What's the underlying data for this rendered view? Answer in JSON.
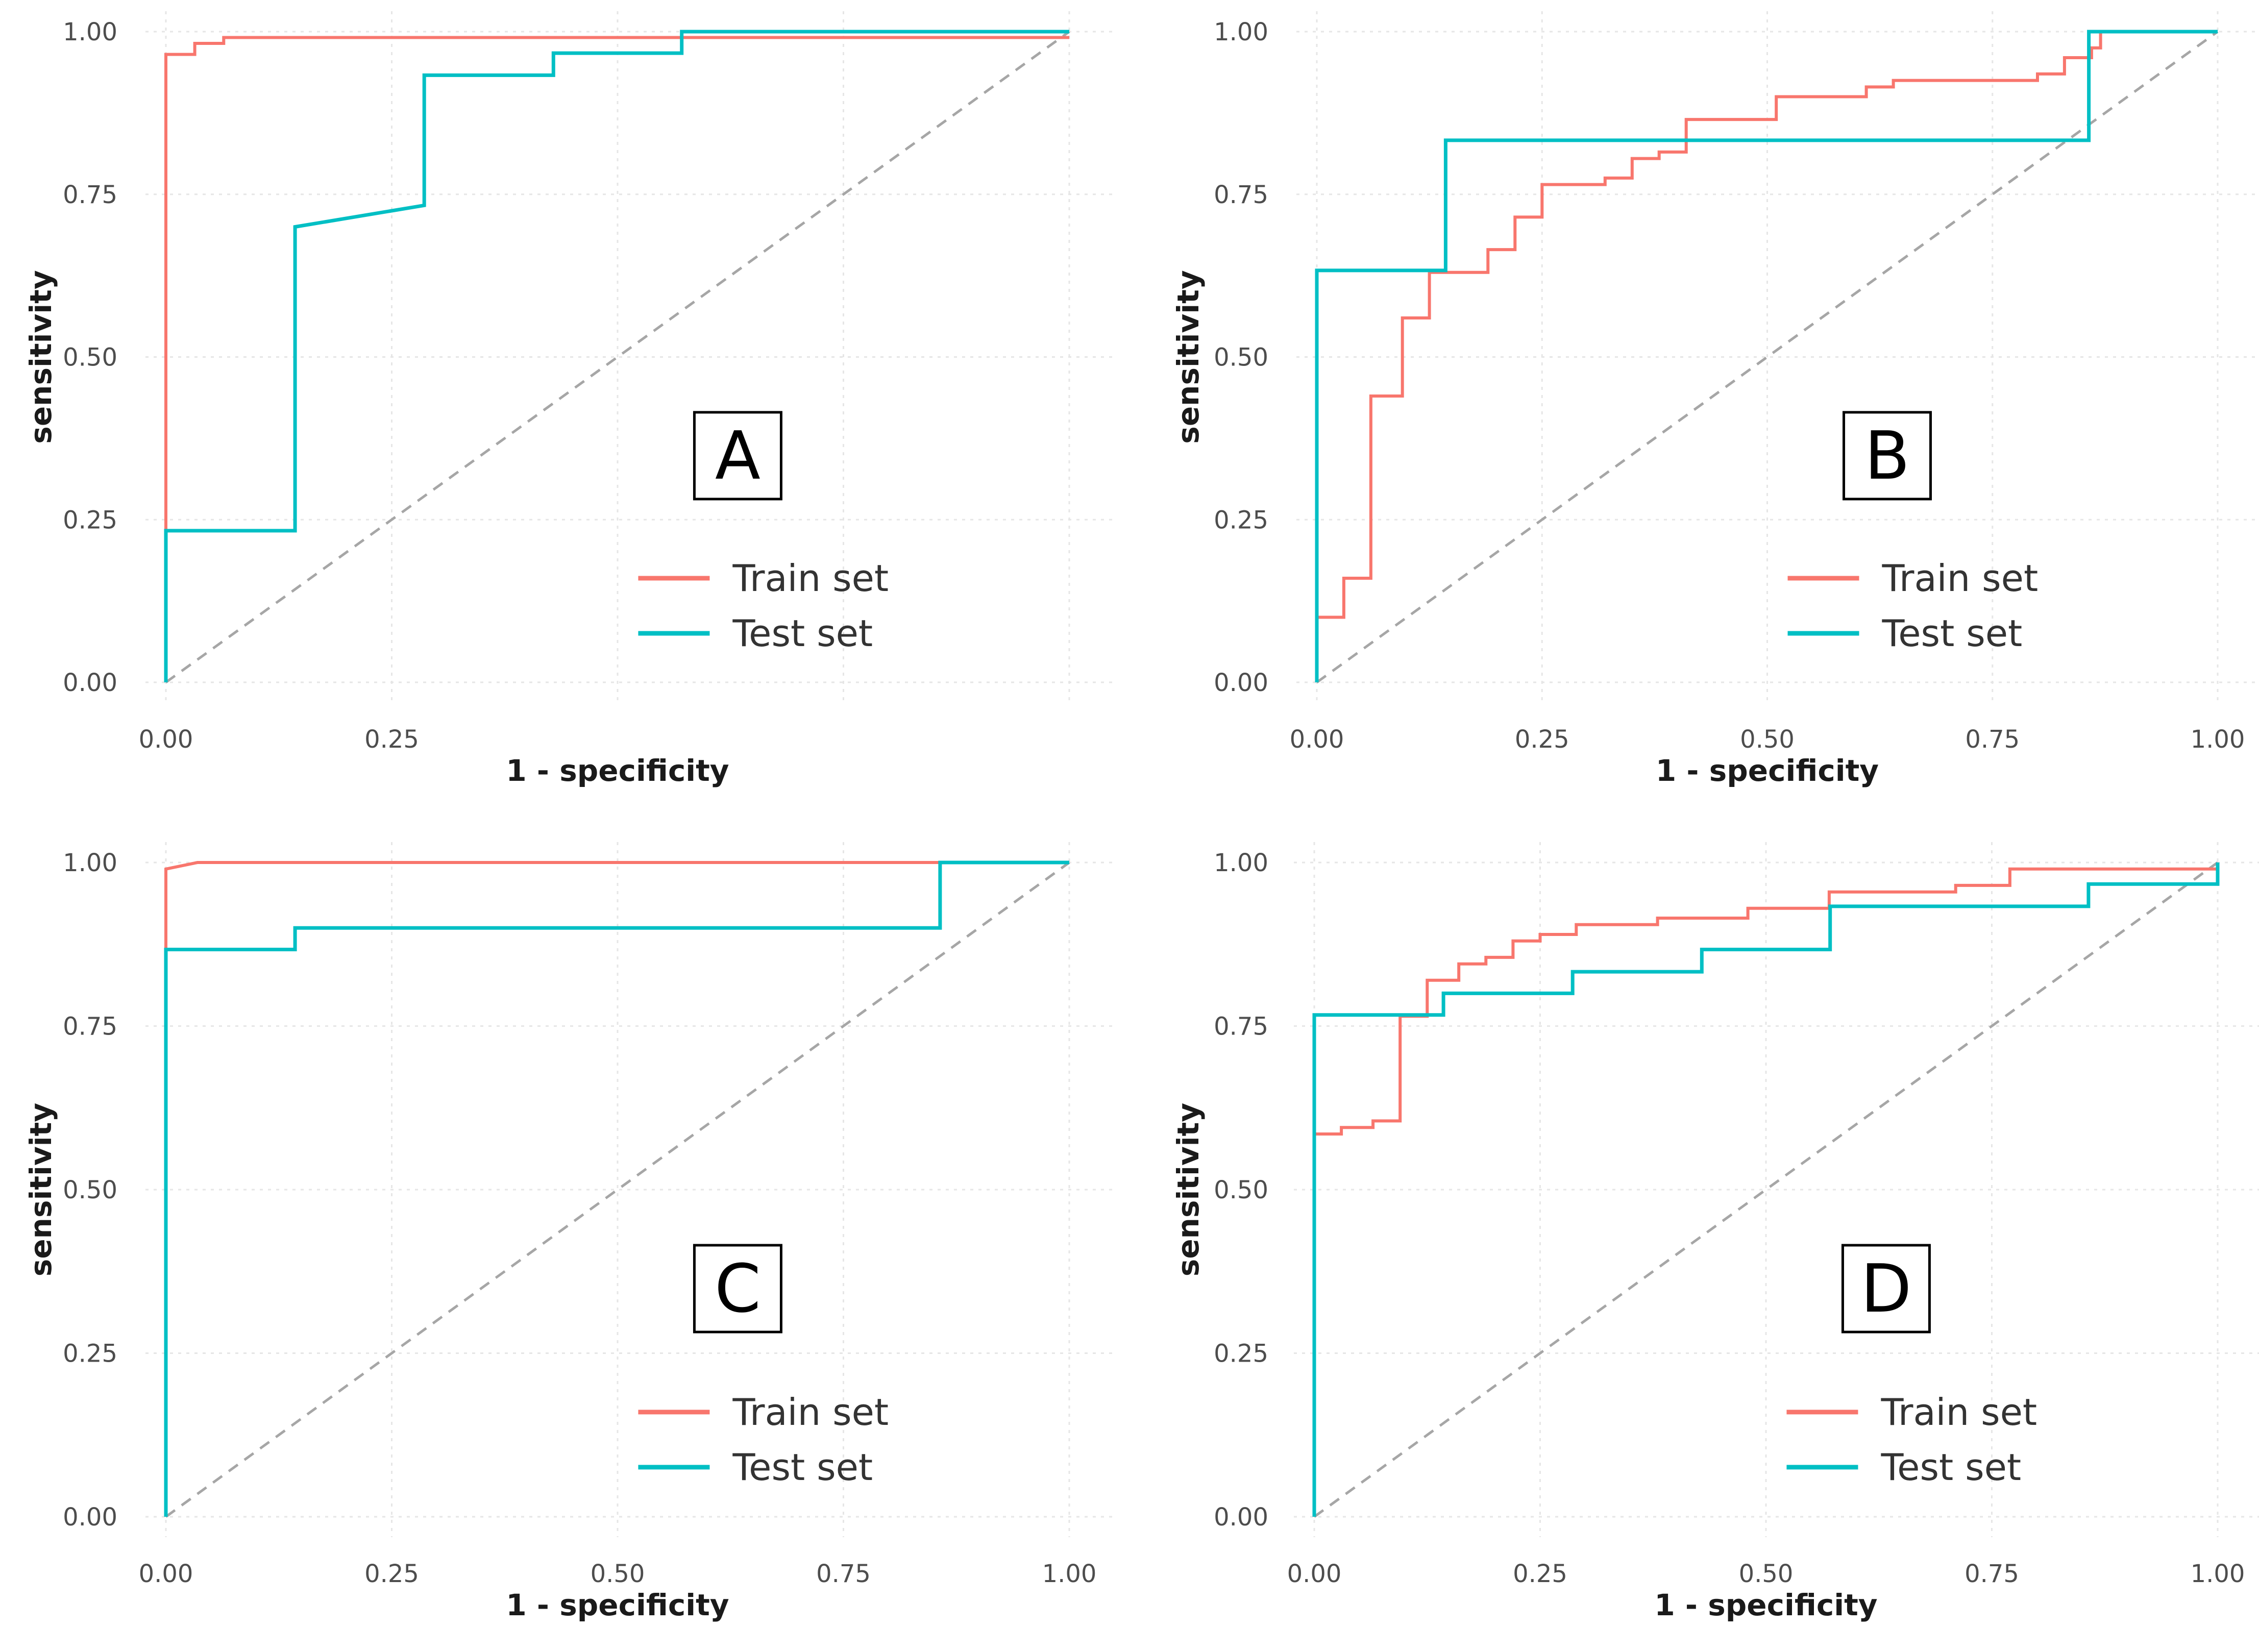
{
  "chart_data": [
    {
      "type": "line",
      "panel": "A",
      "xlabel": "1 - specificity",
      "ylabel": "sensitivity",
      "xlim": [
        0,
        1
      ],
      "ylim": [
        0,
        1
      ],
      "x_ticks": [
        "0.00",
        "0.25"
      ],
      "y_ticks": [
        "0.00",
        "0.25",
        "0.50",
        "0.75",
        "1.00"
      ],
      "grid": true,
      "legend": {
        "position": "bottom-right",
        "entries": [
          "Train set",
          "Test set"
        ]
      },
      "colors": {
        "train": "#F8766D",
        "test": "#00BFC4",
        "diagonal": "#A6A6A6"
      },
      "series": [
        {
          "name": "Train set",
          "x": [
            0,
            0,
            0.032,
            0.032,
            0.064,
            0.064,
            1
          ],
          "y": [
            0,
            0.965,
            0.965,
            0.982,
            0.982,
            0.991,
            0.991
          ]
        },
        {
          "name": "Test set",
          "x": [
            0,
            0,
            0.143,
            0.143,
            0.286,
            0.286,
            0.429,
            0.429,
            0.571,
            0.571,
            1
          ],
          "y": [
            0,
            0.233,
            0.233,
            0.7,
            0.733,
            0.933,
            0.933,
            0.967,
            0.967,
            1.0,
            1.0
          ]
        }
      ]
    },
    {
      "type": "line",
      "panel": "B",
      "xlabel": "1 - specificity",
      "ylabel": "sensitivity",
      "xlim": [
        0,
        1
      ],
      "ylim": [
        0,
        1
      ],
      "x_ticks": [
        "0.00",
        "0.25",
        "0.50",
        "0.75",
        "1.00"
      ],
      "y_ticks": [
        "0.00",
        "0.25",
        "0.50",
        "0.75",
        "1.00"
      ],
      "grid": true,
      "legend": {
        "position": "bottom-right",
        "entries": [
          "Train set",
          "Test set"
        ]
      },
      "colors": {
        "train": "#F8766D",
        "test": "#00BFC4",
        "diagonal": "#A6A6A6"
      },
      "series": [
        {
          "name": "Train set",
          "x": [
            0,
            0,
            0.03,
            0.03,
            0.06,
            0.06,
            0.095,
            0.095,
            0.125,
            0.125,
            0.19,
            0.19,
            0.22,
            0.22,
            0.25,
            0.25,
            0.32,
            0.32,
            0.35,
            0.35,
            0.38,
            0.38,
            0.41,
            0.41,
            0.51,
            0.51,
            0.61,
            0.61,
            0.64,
            0.64,
            0.8,
            0.8,
            0.83,
            0.83,
            0.86,
            0.86,
            0.87,
            0.87,
            1
          ],
          "y": [
            0,
            0.1,
            0.1,
            0.16,
            0.16,
            0.44,
            0.44,
            0.56,
            0.56,
            0.63,
            0.63,
            0.665,
            0.665,
            0.715,
            0.715,
            0.765,
            0.765,
            0.775,
            0.775,
            0.805,
            0.805,
            0.815,
            0.815,
            0.865,
            0.865,
            0.9,
            0.9,
            0.915,
            0.915,
            0.925,
            0.925,
            0.935,
            0.935,
            0.96,
            0.96,
            0.975,
            0.975,
            1.0,
            1.0
          ]
        },
        {
          "name": "Test set",
          "x": [
            0,
            0,
            0.143,
            0.143,
            0.857,
            0.857,
            1
          ],
          "y": [
            0,
            0.633,
            0.633,
            0.833,
            0.833,
            1.0,
            1.0
          ]
        }
      ]
    },
    {
      "type": "line",
      "panel": "C",
      "xlabel": "1 - specificity",
      "ylabel": "sensitivity",
      "xlim": [
        0,
        1
      ],
      "ylim": [
        0,
        1
      ],
      "x_ticks": [
        "0.00",
        "0.25",
        "0.50",
        "0.75",
        "1.00"
      ],
      "y_ticks": [
        "0.00",
        "0.25",
        "0.50",
        "0.75",
        "1.00"
      ],
      "grid": true,
      "legend": {
        "position": "bottom-right",
        "entries": [
          "Train set",
          "Test set"
        ]
      },
      "colors": {
        "train": "#F8766D",
        "test": "#00BFC4",
        "diagonal": "#A6A6A6"
      },
      "series": [
        {
          "name": "Train set",
          "x": [
            0,
            0,
            0.035,
            1
          ],
          "y": [
            0,
            0.99,
            1.0,
            1.0
          ]
        },
        {
          "name": "Test set",
          "x": [
            0,
            0,
            0.143,
            0.143,
            0.857,
            0.857,
            1
          ],
          "y": [
            0,
            0.867,
            0.867,
            0.9,
            0.9,
            1.0,
            1.0
          ]
        }
      ]
    },
    {
      "type": "line",
      "panel": "D",
      "xlabel": "1 - specificity",
      "ylabel": "sensitivity",
      "xlim": [
        0,
        1
      ],
      "ylim": [
        0,
        1
      ],
      "x_ticks": [
        "0.00",
        "0.25",
        "0.50",
        "0.75",
        "1.00"
      ],
      "y_ticks": [
        "0.00",
        "0.25",
        "0.50",
        "0.75",
        "1.00"
      ],
      "grid": true,
      "legend": {
        "position": "bottom-right",
        "entries": [
          "Train set",
          "Test set"
        ]
      },
      "colors": {
        "train": "#F8766D",
        "test": "#00BFC4",
        "diagonal": "#A6A6A6"
      },
      "series": [
        {
          "name": "Train set",
          "x": [
            0,
            0,
            0.03,
            0.03,
            0.065,
            0.065,
            0.095,
            0.095,
            0.125,
            0.125,
            0.16,
            0.16,
            0.19,
            0.19,
            0.22,
            0.22,
            0.25,
            0.25,
            0.29,
            0.29,
            0.38,
            0.38,
            0.48,
            0.48,
            0.57,
            0.57,
            0.71,
            0.71,
            0.77,
            0.77,
            1
          ],
          "y": [
            0,
            0.585,
            0.585,
            0.595,
            0.595,
            0.605,
            0.605,
            0.765,
            0.765,
            0.82,
            0.82,
            0.845,
            0.845,
            0.855,
            0.855,
            0.88,
            0.88,
            0.89,
            0.89,
            0.905,
            0.905,
            0.915,
            0.915,
            0.93,
            0.93,
            0.955,
            0.955,
            0.965,
            0.965,
            0.99,
            0.99
          ]
        },
        {
          "name": "Test set",
          "x": [
            0,
            0,
            0.143,
            0.143,
            0.286,
            0.286,
            0.429,
            0.429,
            0.571,
            0.571,
            0.857,
            0.857,
            1,
            1
          ],
          "y": [
            0,
            0.767,
            0.767,
            0.8,
            0.8,
            0.833,
            0.833,
            0.867,
            0.867,
            0.933,
            0.933,
            0.967,
            0.967,
            1.0
          ]
        }
      ]
    }
  ]
}
